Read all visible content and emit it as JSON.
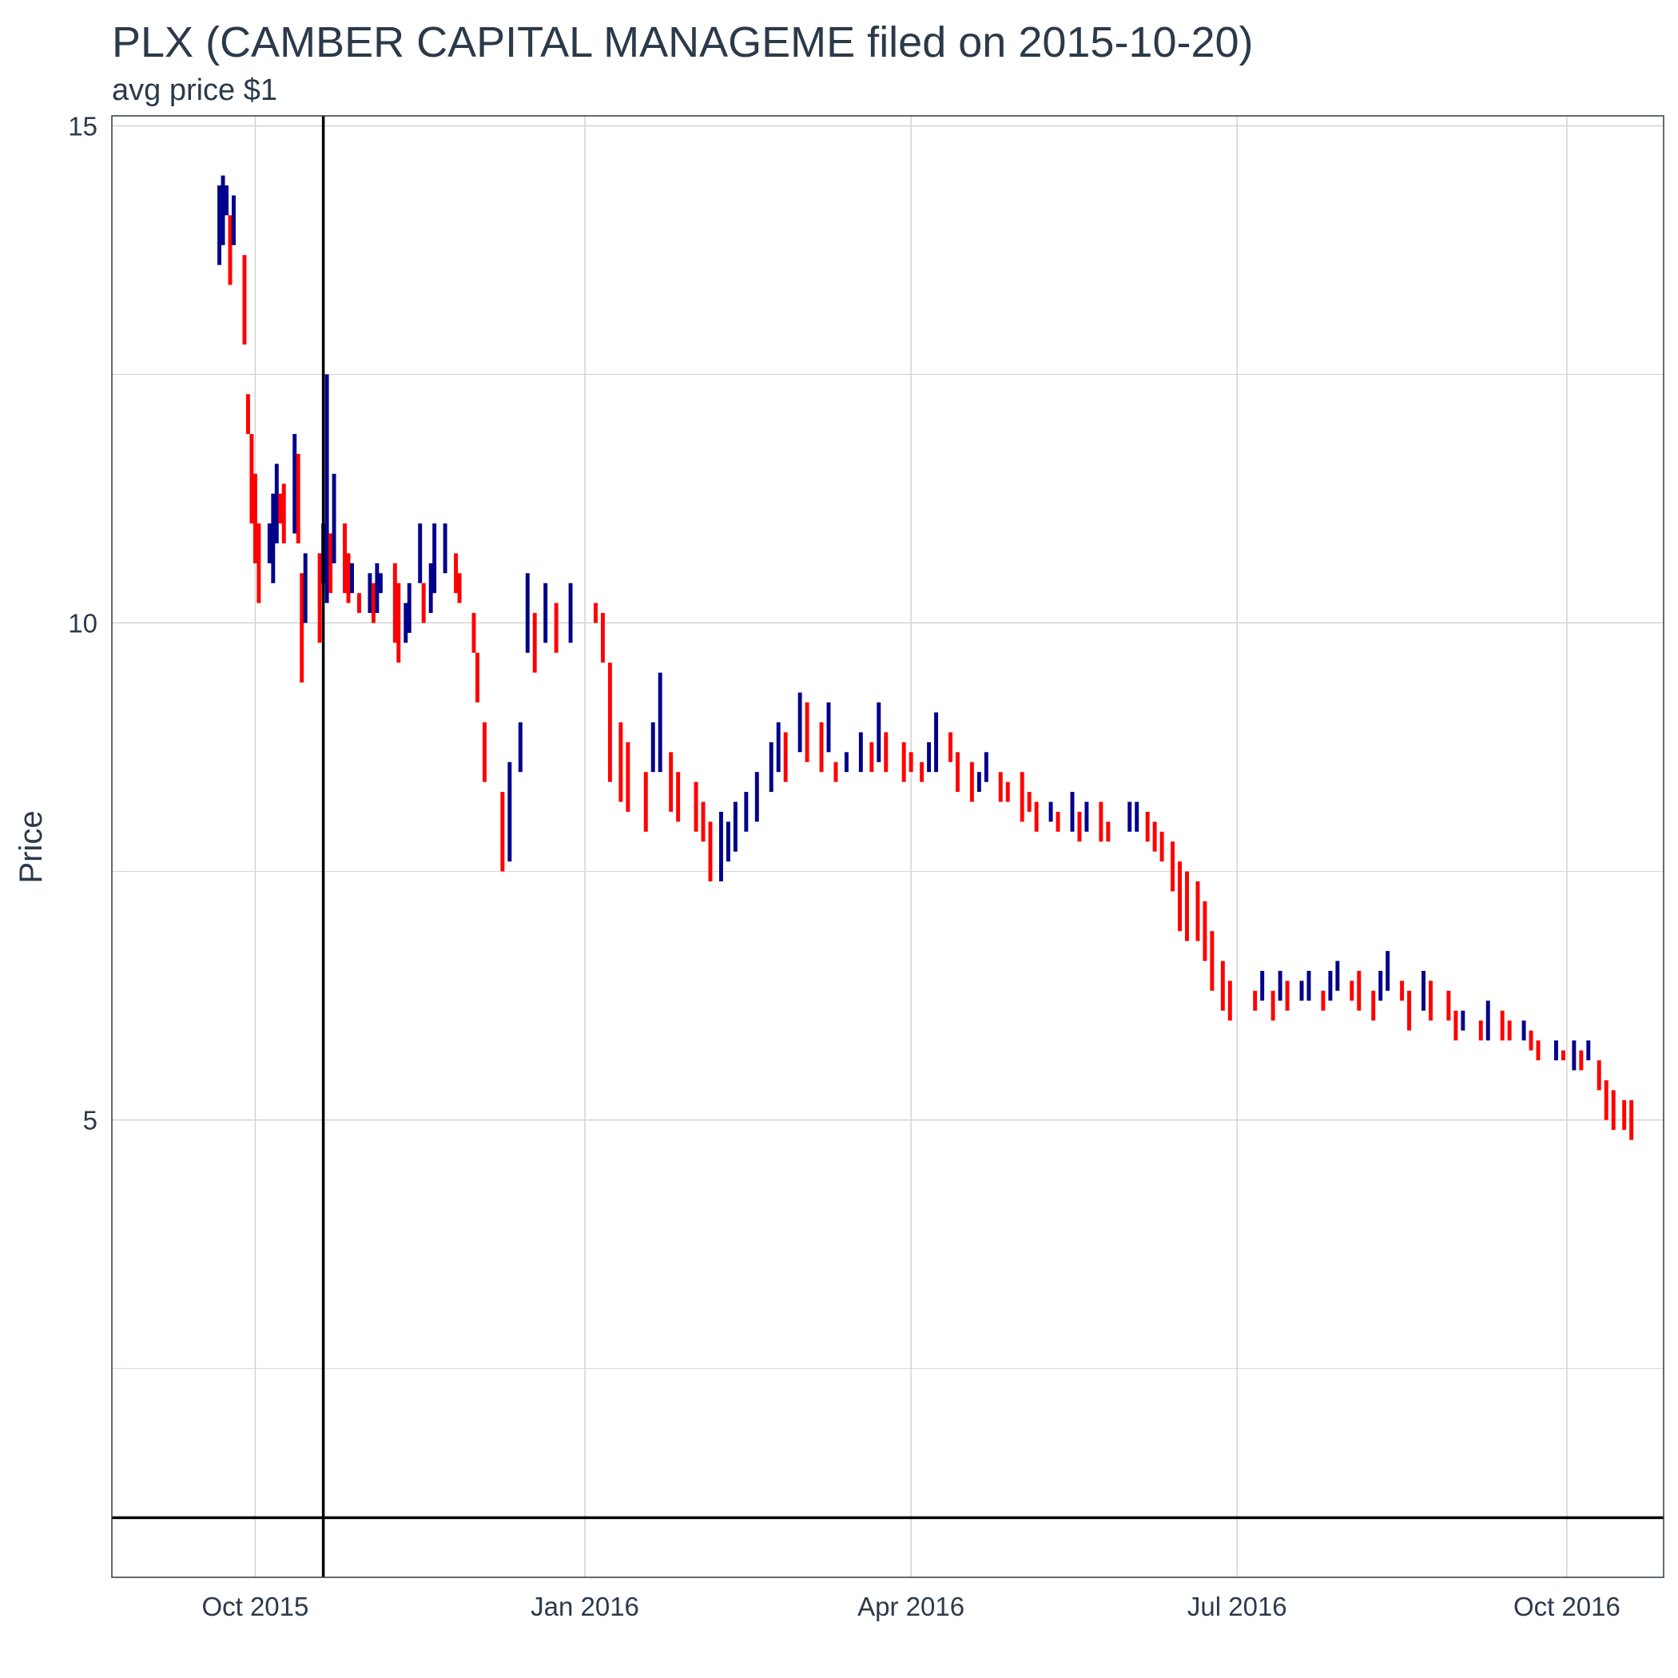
{
  "chart_data": {
    "type": "ohlc",
    "title": "PLX (CAMBER CAPITAL MANAGEME filed on 2015-10-20)",
    "subtitle": "avg price $1",
    "xlabel": "",
    "ylabel": "Price",
    "x_ticks": [
      "Oct 2015",
      "Jan 2016",
      "Apr 2016",
      "Jul 2016",
      "Oct 2016"
    ],
    "x_tick_dates": [
      "2015-10-01",
      "2016-01-01",
      "2016-04-01",
      "2016-07-01",
      "2016-10-01"
    ],
    "y_ticks": [
      5,
      10,
      15
    ],
    "xlim": [
      "2015-08-22",
      "2016-10-28"
    ],
    "ylim": [
      0.4,
      15.1
    ],
    "grid": true,
    "legend": "none",
    "colors": {
      "up": "#00008b",
      "down": "#ff0000",
      "reference": "#000000",
      "grid": "#d3d3d3",
      "panel_border": "#2b3a4a"
    },
    "reference_lines": {
      "vertical_date": "2015-10-20",
      "horizontal_price": 1
    },
    "bars": [
      [
        "2015-09-21",
        14.4,
        13.6
      ],
      [
        "2015-09-22",
        14.5,
        13.8
      ],
      [
        "2015-09-23",
        14.4,
        14.1
      ],
      [
        "2015-09-24",
        14.1,
        13.4
      ],
      [
        "2015-09-25",
        14.3,
        13.8
      ],
      [
        "2015-09-28",
        13.7,
        12.8
      ],
      [
        "2015-09-29",
        12.3,
        11.9
      ],
      [
        "2015-09-30",
        11.9,
        11.0
      ],
      [
        "2015-10-01",
        11.5,
        10.6
      ],
      [
        "2015-10-02",
        11.0,
        10.2
      ],
      [
        "2015-10-05",
        11.0,
        10.6
      ],
      [
        "2015-10-06",
        11.3,
        10.4
      ],
      [
        "2015-10-07",
        11.6,
        10.8
      ],
      [
        "2015-10-08",
        11.3,
        11.0
      ],
      [
        "2015-10-09",
        11.4,
        10.8
      ],
      [
        "2015-10-12",
        11.9,
        10.9
      ],
      [
        "2015-10-13",
        11.7,
        10.8
      ],
      [
        "2015-10-14",
        10.5,
        9.4
      ],
      [
        "2015-10-15",
        10.7,
        10.0
      ],
      [
        "2015-10-19",
        10.7,
        9.8
      ],
      [
        "2015-10-20",
        11.0,
        10.4
      ],
      [
        "2015-10-21",
        12.5,
        10.2
      ],
      [
        "2015-10-22",
        10.9,
        10.3
      ],
      [
        "2015-10-23",
        11.5,
        10.6
      ],
      [
        "2015-10-26",
        11.0,
        10.3
      ],
      [
        "2015-10-27",
        10.7,
        10.2
      ],
      [
        "2015-10-28",
        10.6,
        10.3
      ],
      [
        "2015-10-30",
        10.3,
        10.1
      ],
      [
        "2015-11-02",
        10.5,
        10.1
      ],
      [
        "2015-11-03",
        10.4,
        10.0
      ],
      [
        "2015-11-04",
        10.6,
        10.1
      ],
      [
        "2015-11-05",
        10.5,
        10.3
      ],
      [
        "2015-11-09",
        10.6,
        9.8
      ],
      [
        "2015-11-10",
        10.4,
        9.6
      ],
      [
        "2015-11-12",
        10.2,
        9.8
      ],
      [
        "2015-11-13",
        10.4,
        9.9
      ],
      [
        "2015-11-16",
        11.0,
        10.4
      ],
      [
        "2015-11-17",
        10.4,
        10.0
      ],
      [
        "2015-11-19",
        10.6,
        10.1
      ],
      [
        "2015-11-20",
        11.0,
        10.3
      ],
      [
        "2015-11-23",
        11.0,
        10.5
      ],
      [
        "2015-11-26",
        10.7,
        10.3
      ],
      [
        "2015-11-27",
        10.5,
        10.2
      ],
      [
        "2015-12-01",
        10.1,
        9.7
      ],
      [
        "2015-12-02",
        9.7,
        9.2
      ],
      [
        "2015-12-04",
        9.0,
        8.4
      ],
      [
        "2015-12-09",
        8.3,
        7.5
      ],
      [
        "2015-12-11",
        8.6,
        7.6
      ],
      [
        "2015-12-14",
        9.0,
        8.5
      ],
      [
        "2015-12-16",
        10.5,
        9.7
      ],
      [
        "2015-12-18",
        10.1,
        9.5
      ],
      [
        "2015-12-21",
        10.4,
        9.8
      ],
      [
        "2015-12-24",
        10.2,
        9.7
      ],
      [
        "2015-12-28",
        10.4,
        9.8
      ],
      [
        "2016-01-04",
        10.2,
        10.0
      ],
      [
        "2016-01-06",
        10.1,
        9.6
      ],
      [
        "2016-01-08",
        9.6,
        8.4
      ],
      [
        "2016-01-11",
        9.0,
        8.2
      ],
      [
        "2016-01-13",
        8.8,
        8.1
      ],
      [
        "2016-01-18",
        8.5,
        7.9
      ],
      [
        "2016-01-20",
        9.0,
        8.5
      ],
      [
        "2016-01-22",
        9.5,
        8.5
      ],
      [
        "2016-01-25",
        8.7,
        8.1
      ],
      [
        "2016-01-27",
        8.5,
        8.0
      ],
      [
        "2016-02-01",
        8.4,
        7.9
      ],
      [
        "2016-02-03",
        8.2,
        7.8
      ],
      [
        "2016-02-05",
        8.0,
        7.4
      ],
      [
        "2016-02-08",
        8.1,
        7.4
      ],
      [
        "2016-02-10",
        8.0,
        7.6
      ],
      [
        "2016-02-12",
        8.2,
        7.7
      ],
      [
        "2016-02-15",
        8.3,
        7.9
      ],
      [
        "2016-02-18",
        8.5,
        8.0
      ],
      [
        "2016-02-22",
        8.8,
        8.3
      ],
      [
        "2016-02-24",
        9.0,
        8.5
      ],
      [
        "2016-02-26",
        8.9,
        8.4
      ],
      [
        "2016-03-01",
        9.3,
        8.7
      ],
      [
        "2016-03-03",
        9.2,
        8.6
      ],
      [
        "2016-03-07",
        9.0,
        8.5
      ],
      [
        "2016-03-09",
        9.2,
        8.7
      ],
      [
        "2016-03-11",
        8.6,
        8.4
      ],
      [
        "2016-03-14",
        8.7,
        8.5
      ],
      [
        "2016-03-18",
        8.9,
        8.5
      ],
      [
        "2016-03-21",
        8.8,
        8.5
      ],
      [
        "2016-03-23",
        9.2,
        8.6
      ],
      [
        "2016-03-25",
        8.9,
        8.5
      ],
      [
        "2016-03-30",
        8.8,
        8.4
      ],
      [
        "2016-04-01",
        8.7,
        8.5
      ],
      [
        "2016-04-04",
        8.6,
        8.4
      ],
      [
        "2016-04-06",
        8.8,
        8.5
      ],
      [
        "2016-04-08",
        9.1,
        8.5
      ],
      [
        "2016-04-12",
        8.9,
        8.6
      ],
      [
        "2016-04-14",
        8.7,
        8.3
      ],
      [
        "2016-04-18",
        8.6,
        8.2
      ],
      [
        "2016-04-20",
        8.5,
        8.3
      ],
      [
        "2016-04-22",
        8.7,
        8.4
      ],
      [
        "2016-04-26",
        8.5,
        8.2
      ],
      [
        "2016-04-28",
        8.4,
        8.2
      ],
      [
        "2016-05-02",
        8.5,
        8.0
      ],
      [
        "2016-05-04",
        8.3,
        8.1
      ],
      [
        "2016-05-06",
        8.2,
        7.9
      ],
      [
        "2016-05-10",
        8.2,
        8.0
      ],
      [
        "2016-05-12",
        8.1,
        7.9
      ],
      [
        "2016-05-16",
        8.3,
        7.9
      ],
      [
        "2016-05-18",
        8.1,
        7.8
      ],
      [
        "2016-05-20",
        8.2,
        7.9
      ],
      [
        "2016-05-24",
        8.2,
        7.8
      ],
      [
        "2016-05-26",
        8.0,
        7.8
      ],
      [
        "2016-06-01",
        8.2,
        7.9
      ],
      [
        "2016-06-03",
        8.2,
        7.9
      ],
      [
        "2016-06-06",
        8.1,
        7.8
      ],
      [
        "2016-06-08",
        8.0,
        7.7
      ],
      [
        "2016-06-10",
        7.9,
        7.6
      ],
      [
        "2016-06-13",
        7.8,
        7.3
      ],
      [
        "2016-06-15",
        7.6,
        6.9
      ],
      [
        "2016-06-17",
        7.5,
        6.8
      ],
      [
        "2016-06-20",
        7.4,
        6.8
      ],
      [
        "2016-06-22",
        7.2,
        6.6
      ],
      [
        "2016-06-24",
        6.9,
        6.3
      ],
      [
        "2016-06-27",
        6.6,
        6.1
      ],
      [
        "2016-06-29",
        6.4,
        6.0
      ],
      [
        "2016-07-06",
        6.3,
        6.1
      ],
      [
        "2016-07-08",
        6.5,
        6.2
      ],
      [
        "2016-07-11",
        6.3,
        6.0
      ],
      [
        "2016-07-13",
        6.5,
        6.2
      ],
      [
        "2016-07-15",
        6.4,
        6.1
      ],
      [
        "2016-07-19",
        6.4,
        6.2
      ],
      [
        "2016-07-21",
        6.5,
        6.2
      ],
      [
        "2016-07-25",
        6.3,
        6.1
      ],
      [
        "2016-07-27",
        6.5,
        6.2
      ],
      [
        "2016-07-29",
        6.6,
        6.3
      ],
      [
        "2016-08-02",
        6.4,
        6.2
      ],
      [
        "2016-08-04",
        6.5,
        6.1
      ],
      [
        "2016-08-08",
        6.3,
        6.0
      ],
      [
        "2016-08-10",
        6.5,
        6.2
      ],
      [
        "2016-08-12",
        6.7,
        6.3
      ],
      [
        "2016-08-16",
        6.4,
        6.2
      ],
      [
        "2016-08-18",
        6.3,
        5.9
      ],
      [
        "2016-08-22",
        6.5,
        6.1
      ],
      [
        "2016-08-24",
        6.4,
        6.0
      ],
      [
        "2016-08-29",
        6.3,
        6.0
      ],
      [
        "2016-08-31",
        6.1,
        5.8
      ],
      [
        "2016-09-02",
        6.1,
        5.9
      ],
      [
        "2016-09-07",
        6.0,
        5.8
      ],
      [
        "2016-09-09",
        6.2,
        5.8
      ],
      [
        "2016-09-13",
        6.1,
        5.8
      ],
      [
        "2016-09-15",
        6.0,
        5.8
      ],
      [
        "2016-09-19",
        6.0,
        5.8
      ],
      [
        "2016-09-21",
        5.9,
        5.7
      ],
      [
        "2016-09-23",
        5.8,
        5.6
      ],
      [
        "2016-09-28",
        5.8,
        5.6
      ],
      [
        "2016-09-30",
        5.7,
        5.6
      ],
      [
        "2016-10-03",
        5.8,
        5.5
      ],
      [
        "2016-10-05",
        5.7,
        5.5
      ],
      [
        "2016-10-07",
        5.8,
        5.6
      ],
      [
        "2016-10-10",
        5.6,
        5.3
      ],
      [
        "2016-10-12",
        5.4,
        5.0
      ],
      [
        "2016-10-14",
        5.3,
        4.9
      ],
      [
        "2016-10-17",
        5.2,
        4.9
      ],
      [
        "2016-10-19",
        5.2,
        4.8
      ]
    ]
  }
}
